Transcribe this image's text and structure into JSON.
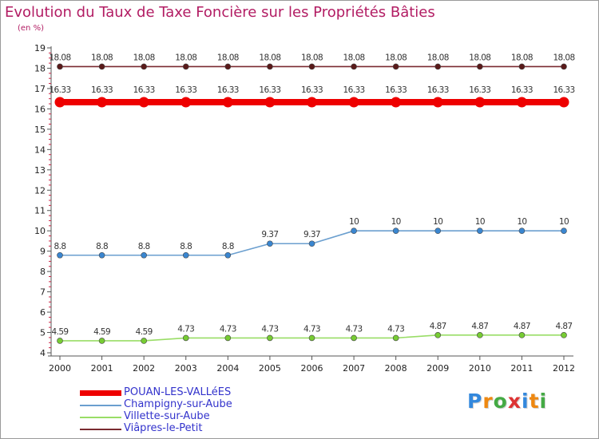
{
  "page": {
    "title": "Evolution du Taux de Taxe Foncière sur les Propriétés Bâties",
    "subtitle": "(en %)"
  },
  "chart_data": {
    "type": "line",
    "title": "Evolution du Taux de Taxe Foncière sur les Propriétés Bâties",
    "ylabel": "(en %)",
    "xlabel": "",
    "x": [
      2000,
      2001,
      2002,
      2003,
      2004,
      2005,
      2006,
      2007,
      2008,
      2009,
      2010,
      2011,
      2012
    ],
    "ylim": [
      4,
      19
    ],
    "yticks": [
      4,
      5,
      6,
      7,
      8,
      9,
      10,
      11,
      12,
      13,
      14,
      15,
      16,
      17,
      18,
      19
    ],
    "grid": false,
    "legend_position": "bottom-left",
    "series": [
      {
        "name": "Viâpres-le-Petit",
        "color": "#7a2a30",
        "marker_color": "#5a1a1a",
        "values": [
          18.08,
          18.08,
          18.08,
          18.08,
          18.08,
          18.08,
          18.08,
          18.08,
          18.08,
          18.08,
          18.08,
          18.08,
          18.08
        ],
        "labels": [
          "18.08",
          "18.08",
          "18.08",
          "18.08",
          "18.08",
          "18.08",
          "18.08",
          "18.08",
          "18.08",
          "18.08",
          "18.08",
          "18.08",
          "18.08"
        ]
      },
      {
        "name": "POUAN-LES-VALLéES",
        "color": "#ee0000",
        "marker_color": "#ee0000",
        "values": [
          16.33,
          16.33,
          16.33,
          16.33,
          16.33,
          16.33,
          16.33,
          16.33,
          16.33,
          16.33,
          16.33,
          16.33,
          16.33
        ],
        "labels": [
          "16.33",
          "16.33",
          "16.33",
          "16.33",
          "16.33",
          "16.33",
          "16.33",
          "16.33",
          "16.33",
          "16.33",
          "16.33",
          "16.33",
          "16.33"
        ]
      },
      {
        "name": "Champigny-sur-Aube",
        "color": "#6b9fcf",
        "marker_color": "#3a86d0",
        "values": [
          8.8,
          8.8,
          8.8,
          8.8,
          8.8,
          9.37,
          9.37,
          10,
          10,
          10,
          10,
          10,
          10
        ],
        "labels": [
          "8.8",
          "8.8",
          "8.8",
          "8.8",
          "8.8",
          "9.37",
          "9.37",
          "10",
          "10",
          "10",
          "10",
          "10",
          "10"
        ]
      },
      {
        "name": "Villette-sur-Aube",
        "color": "#99dd66",
        "marker_color": "#77cc33",
        "values": [
          4.59,
          4.59,
          4.59,
          4.73,
          4.73,
          4.73,
          4.73,
          4.73,
          4.73,
          4.87,
          4.87,
          4.87,
          4.87
        ],
        "labels": [
          "4.59",
          "4.59",
          "4.59",
          "4.73",
          "4.73",
          "4.73",
          "4.73",
          "4.73",
          "4.73",
          "4.87",
          "4.87",
          "4.87",
          "4.87"
        ]
      }
    ],
    "legend": [
      {
        "name": "POUAN-LES-VALLéES",
        "color": "#ee0000"
      },
      {
        "name": "Champigny-sur-Aube",
        "color": "#6b9fcf"
      },
      {
        "name": "Villette-sur-Aube",
        "color": "#99dd66"
      },
      {
        "name": "Viâpres-le-Petit",
        "color": "#7a2a30"
      }
    ]
  },
  "logo": {
    "letters": [
      "P",
      "r",
      "o",
      "x",
      "i",
      "t",
      "i"
    ],
    "colors": [
      "#3388dd",
      "#ee8811",
      "#44aa44",
      "#dd3333",
      "#3388dd",
      "#ee8811",
      "#44aa44"
    ]
  }
}
